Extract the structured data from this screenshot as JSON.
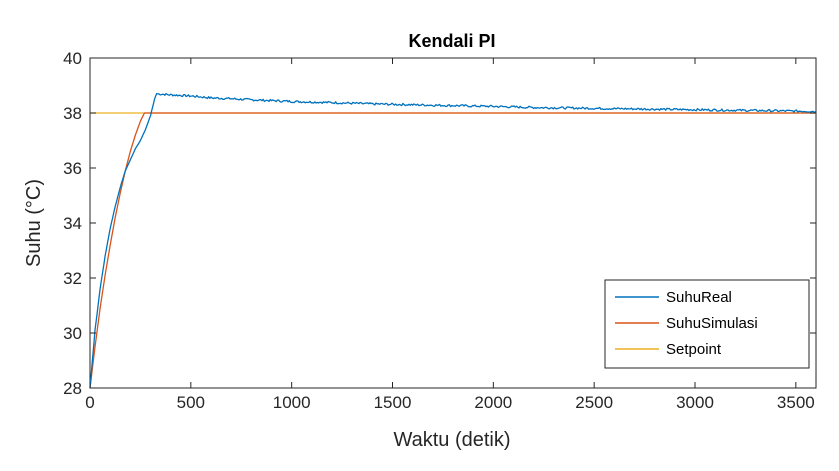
{
  "chart_data": {
    "type": "line",
    "title": "Kendali PI",
    "xlabel": "Waktu (detik)",
    "ylabel": "Suhu (°C)",
    "xlim": [
      0,
      3600
    ],
    "ylim": [
      28,
      40
    ],
    "xticks": [
      0,
      500,
      1000,
      1500,
      2000,
      2500,
      3000,
      3500
    ],
    "yticks": [
      28,
      30,
      32,
      34,
      36,
      38,
      40
    ],
    "grid": false,
    "legend_placement": "bottom-right",
    "series": [
      {
        "name": "SuhuReal",
        "color": "#0072BD",
        "x": [
          0,
          25,
          50,
          75,
          100,
          125,
          150,
          175,
          200,
          225,
          250,
          275,
          300,
          320,
          330,
          400,
          500,
          600,
          700,
          800,
          900,
          1000,
          1200,
          1400,
          1600,
          1800,
          2000,
          2200,
          2400,
          2600,
          2800,
          3000,
          3200,
          3400,
          3600
        ],
        "y": [
          28.0,
          30.1,
          31.6,
          32.8,
          33.8,
          34.6,
          35.3,
          35.9,
          36.3,
          36.7,
          37.0,
          37.4,
          37.9,
          38.5,
          38.7,
          38.66,
          38.62,
          38.55,
          38.52,
          38.48,
          38.45,
          38.42,
          38.38,
          38.33,
          38.3,
          38.27,
          38.24,
          38.2,
          38.18,
          38.16,
          38.14,
          38.12,
          38.1,
          38.08,
          38.06
        ],
        "noise": 0.04
      },
      {
        "name": "SuhuSimulasi",
        "color": "#D95319",
        "x": [
          0,
          25,
          50,
          75,
          100,
          125,
          150,
          175,
          200,
          225,
          250,
          270,
          290,
          3600
        ],
        "y": [
          28.0,
          29.5,
          30.9,
          32.1,
          33.2,
          34.2,
          35.1,
          35.9,
          36.6,
          37.2,
          37.7,
          38.0,
          38.0,
          38.0
        ]
      },
      {
        "name": "Setpoint",
        "color": "#EDB120",
        "x": [
          0,
          3600
        ],
        "y": [
          38,
          38
        ]
      }
    ]
  }
}
